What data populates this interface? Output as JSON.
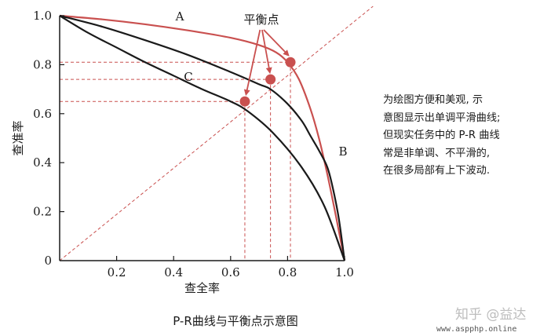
{
  "chart_data": {
    "type": "line",
    "title": "P-R曲线与平衡点示意图",
    "xlabel": "查全率",
    "ylabel": "查准率",
    "xlim": [
      0,
      1
    ],
    "ylim": [
      0,
      1
    ],
    "xticks": [
      "0.2",
      "0.4",
      "0.6",
      "0.8",
      "1.0"
    ],
    "yticks": [
      "0",
      "0.2",
      "0.4",
      "0.6",
      "0.8",
      "1.0"
    ],
    "series": [
      {
        "name": "A",
        "color": "#c9504f",
        "x": [
          0,
          0.15,
          0.3,
          0.45,
          0.6,
          0.7,
          0.76,
          0.8,
          0.84,
          0.88,
          0.91,
          0.94,
          0.97,
          0.99,
          1.0
        ],
        "y": [
          1.0,
          0.985,
          0.965,
          0.94,
          0.91,
          0.88,
          0.85,
          0.81,
          0.74,
          0.62,
          0.5,
          0.35,
          0.18,
          0.06,
          0
        ]
      },
      {
        "name": "B",
        "color": "#1a1a1a",
        "x": [
          0,
          0.15,
          0.3,
          0.45,
          0.6,
          0.7,
          0.74,
          0.8,
          0.85,
          0.88,
          0.91,
          0.94,
          0.96,
          0.98,
          1.0
        ],
        "y": [
          1.0,
          0.955,
          0.9,
          0.84,
          0.77,
          0.72,
          0.7,
          0.64,
          0.57,
          0.51,
          0.45,
          0.38,
          0.29,
          0.17,
          0
        ]
      },
      {
        "name": "C",
        "color": "#1a1a1a",
        "x": [
          0,
          0.1,
          0.2,
          0.3,
          0.4,
          0.5,
          0.6,
          0.66,
          0.75,
          0.85,
          0.93,
          1.0
        ],
        "y": [
          1.0,
          0.93,
          0.87,
          0.81,
          0.755,
          0.7,
          0.65,
          0.61,
          0.52,
          0.38,
          0.22,
          0
        ]
      }
    ],
    "break_even_points": [
      {
        "x": 0.81,
        "y": 0.81
      },
      {
        "x": 0.74,
        "y": 0.74
      },
      {
        "x": 0.65,
        "y": 0.65
      }
    ],
    "annotation": "平衡点",
    "grid": false
  },
  "notes": [
    "为绘图方便和美观, 示",
    "意图显示出单调平滑曲线;",
    "但现实任务中的 P-R 曲线",
    "常是非单调、不平滑的,",
    "在很多局部有上下波动."
  ],
  "watermark": "知乎 @益达",
  "watermark_url": "www.aspphp.online",
  "colors": {
    "accent": "#c9504f",
    "ink": "#1a1a1a"
  }
}
